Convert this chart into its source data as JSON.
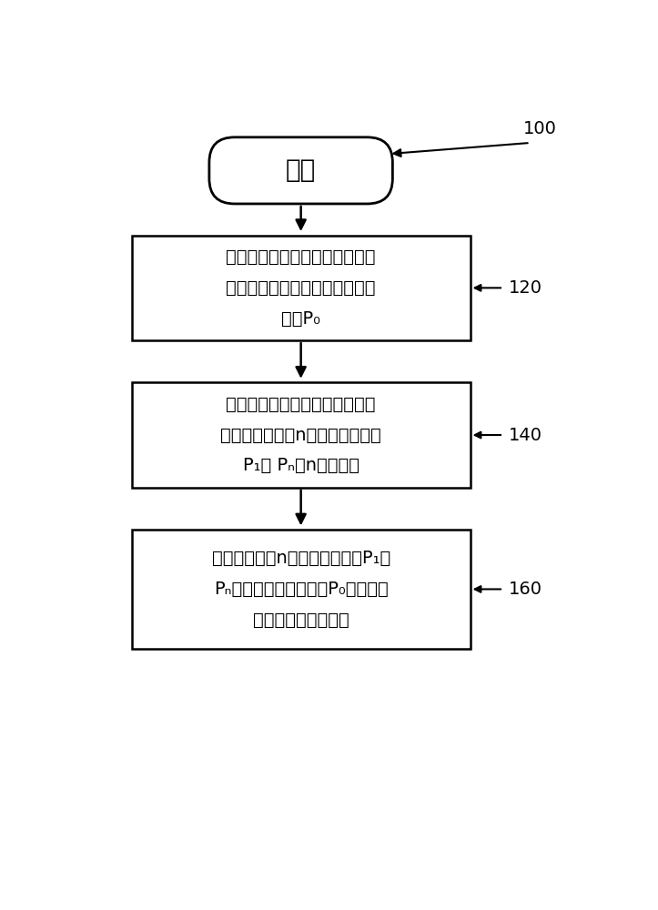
{
  "background_color": "#ffffff",
  "label_100": "100",
  "label_120": "120",
  "label_140": "140",
  "label_160": "160",
  "start_text": "开始",
  "box1_line1": "记录从机床的光束发射装置出射",
  "box1_line2": "的光束的光斌位置作为光斌初始",
  "box1_line3": "位置P₀",
  "box2_line1": "在使所述机床定点摇动的指令下",
  "box2_line2": "记录所述光束的n个光斌偏移位置",
  "box2_line3": "P₁～ Pₙ，n为自然数",
  "box3_line1": "分别计算所述n个光斌偏移位置P₁～",
  "box3_line2": "Pₙ与所述光斌初始位置P₀之间的差",
  "box3_line3": "以得到一组光斌偏差",
  "shape_color": "#ffffff",
  "border_color": "#000000",
  "arrow_color": "#000000",
  "text_color": "#000000"
}
